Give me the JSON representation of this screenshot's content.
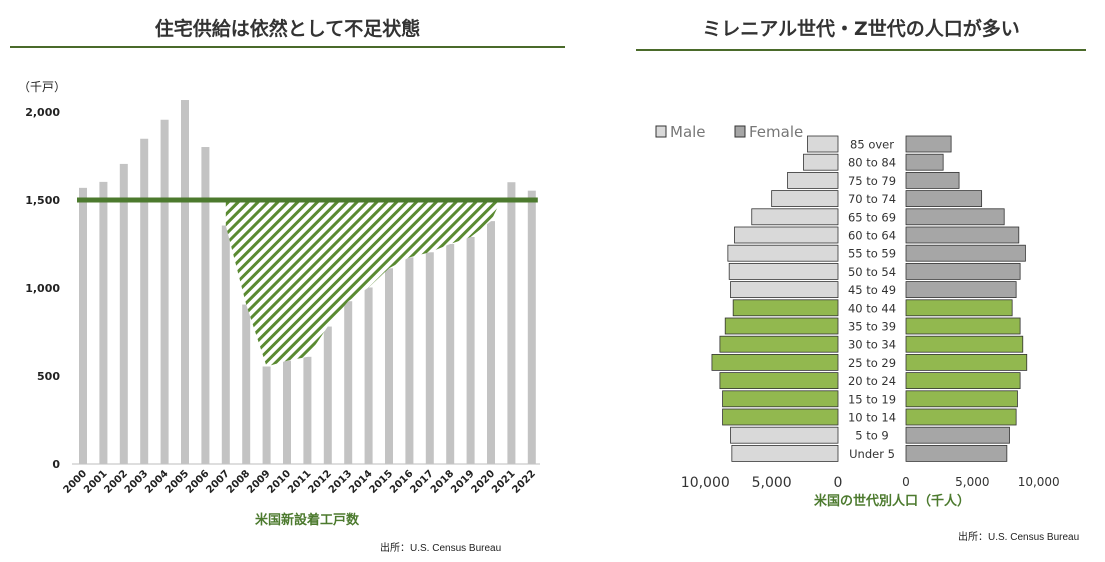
{
  "left": {
    "title": "住宅供給は依然として不足状態",
    "source": "出所：U.S. Census Bureau",
    "colors": {
      "bar": "#c3c3c3",
      "line": "#4c7a2e",
      "hatch": "#5a8a32"
    },
    "chart_data": {
      "type": "bar",
      "title": "住宅供給は依然として不足状態",
      "unit_label": "（千戸）",
      "xlabel": "米国新設着工戸数",
      "ylim": [
        0,
        2200
      ],
      "yticks": [
        0,
        500,
        1000,
        1500,
        2000
      ],
      "ytick_labels": [
        "0",
        "500",
        "1,000",
        "1,500",
        "2,000"
      ],
      "categories": [
        "2000",
        "2001",
        "2002",
        "2003",
        "2004",
        "2005",
        "2006",
        "2007",
        "2008",
        "2009",
        "2010",
        "2011",
        "2012",
        "2013",
        "2014",
        "2015",
        "2016",
        "2017",
        "2018",
        "2019",
        "2020",
        "2021",
        "2022"
      ],
      "values": [
        1569,
        1603,
        1705,
        1848,
        1956,
        2068,
        1801,
        1355,
        906,
        554,
        587,
        609,
        781,
        925,
        1003,
        1112,
        1174,
        1203,
        1250,
        1290,
        1380,
        1601,
        1553
      ],
      "reference_line": 1500
    }
  },
  "right": {
    "title": "ミレニアル世代・Z世代の人口が多い",
    "source": "出所：U.S. Census Bureau",
    "colors": {
      "male": "#d9d9d9",
      "female": "#a6a6a6",
      "highlight": "#92b84f"
    },
    "chart_data": {
      "type": "bar",
      "subtype": "population-pyramid",
      "xlabel": "米国の世代別人口（千人）",
      "legend": [
        "Male",
        "Female"
      ],
      "xlim": [
        -11000,
        11000
      ],
      "xtick_labels_left": [
        "10,000",
        "5,000",
        "0"
      ],
      "xtick_labels_right": [
        "0",
        "5,000",
        "10,000"
      ],
      "categories": [
        "85 over",
        "80 to 84",
        "75 to 79",
        "70 to 74",
        "65 to 69",
        "60 to 64",
        "55 to 59",
        "50 to 54",
        "45 to 49",
        "40 to 44",
        "35 to 39",
        "30 to 34",
        "25 to 29",
        "20 to 24",
        "15 to 19",
        "10 to 14",
        "5 to 9",
        "Under 5"
      ],
      "series": [
        {
          "name": "Male",
          "values": [
            2300,
            2600,
            3800,
            5000,
            6500,
            7800,
            8300,
            8200,
            8100,
            7900,
            8500,
            8900,
            9500,
            8900,
            8700,
            8700,
            8100,
            8000
          ]
        },
        {
          "name": "Female",
          "values": [
            3400,
            2800,
            4000,
            5700,
            7400,
            8500,
            9000,
            8600,
            8300,
            8000,
            8600,
            8800,
            9100,
            8600,
            8400,
            8300,
            7800,
            7600
          ]
        }
      ],
      "highlighted_categories": [
        "40 to 44",
        "35 to 39",
        "30 to 34",
        "25 to 29",
        "20 to 24",
        "15 to 19",
        "10 to 14"
      ]
    }
  }
}
